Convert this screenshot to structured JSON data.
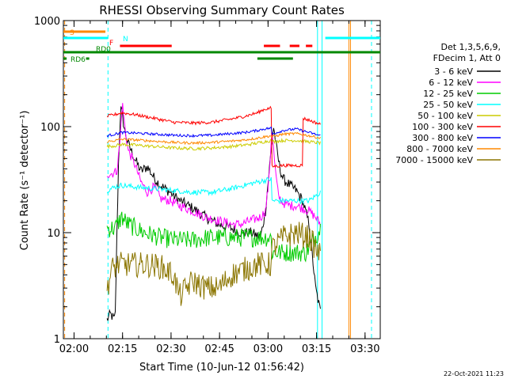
{
  "chart_data": {
    "type": "line",
    "title": "RHESSI Observing Summary Count Rates",
    "xlabel": "Start Time (10-Jun-12 01:56:42)",
    "ylabel": "Count Rate (s⁻¹ detector⁻¹)",
    "ylim": [
      1,
      1000
    ],
    "xlim_minutes_after_start": [
      0,
      98
    ],
    "y_scale": "log",
    "grid": false,
    "legend_position": "right",
    "x_ticks": [
      {
        "label": "02:00",
        "minutes": 3.3
      },
      {
        "label": "02:15",
        "minutes": 18.3
      },
      {
        "label": "02:30",
        "minutes": 33.3
      },
      {
        "label": "02:45",
        "minutes": 48.3
      },
      {
        "label": "03:00",
        "minutes": 63.3
      },
      {
        "label": "03:15",
        "minutes": 78.3
      },
      {
        "label": "03:30",
        "minutes": 93.3
      }
    ],
    "y_ticks": [
      {
        "label": "1",
        "value": 1
      },
      {
        "label": "10",
        "value": 10
      },
      {
        "label": "100",
        "value": 100
      },
      {
        "label": "1000",
        "value": 1000
      }
    ],
    "legend_header": [
      "Det 1,3,5,6,9,",
      "FDecim 1, Att 0"
    ],
    "timestamp": "22-Oct-2021 11:23",
    "data_windows_minutes": [
      [
        13.5,
        64.3
      ],
      [
        64.3,
        79.5
      ]
    ],
    "series": [
      {
        "name": "3 - 6 keV",
        "color": "#000000",
        "t": [
          13.5,
          14.5,
          16,
          17,
          17.7,
          18.2,
          19,
          20,
          22,
          24,
          26,
          28,
          30,
          33,
          36,
          40,
          44,
          48,
          52,
          55,
          58,
          61,
          62.5,
          64,
          65,
          66,
          67,
          68,
          69,
          70,
          72,
          74,
          76,
          78,
          79.5
        ],
        "v": [
          1.5,
          1.7,
          1.5,
          40,
          150,
          130,
          90,
          70,
          50,
          38,
          42,
          33,
          28,
          24,
          20,
          17,
          14,
          12,
          11,
          10,
          10,
          9,
          16,
          50,
          100,
          60,
          40,
          32,
          30,
          28,
          25,
          20,
          12,
          3,
          1.8
        ]
      },
      {
        "name": "6 - 12 keV",
        "color": "#ff00ff",
        "t": [
          13.5,
          15,
          16.5,
          17.5,
          18.2,
          19,
          20,
          22,
          24,
          26,
          28,
          30,
          33,
          36,
          40,
          44,
          48,
          52,
          55,
          58,
          61,
          62.5,
          63.5,
          64.5,
          65.5,
          66.5,
          68,
          70,
          72,
          74,
          76,
          78,
          79.5
        ],
        "v": [
          36,
          36,
          38,
          70,
          170,
          100,
          60,
          45,
          30,
          24,
          27,
          21,
          20,
          18,
          16,
          14,
          13,
          12,
          12,
          13,
          14,
          16,
          30,
          95,
          40,
          22,
          19,
          18,
          18,
          17,
          16,
          14,
          12
        ]
      },
      {
        "name": "12 - 25 keV",
        "color": "#00cc00",
        "t": [
          13.5,
          16,
          18,
          20,
          25,
          30,
          35,
          40,
          45,
          50,
          55,
          60,
          64.3,
          64.4,
          70,
          75,
          79.5
        ],
        "v": [
          11,
          11,
          14,
          12,
          10,
          9,
          8.5,
          8.5,
          9,
          9,
          9,
          9,
          9,
          6.5,
          6.5,
          6.5,
          11
        ]
      },
      {
        "name": "25 - 50 keV",
        "color": "#00ffff",
        "t": [
          13.5,
          16,
          18,
          22,
          28,
          34,
          40,
          46,
          52,
          56,
          60,
          62,
          64.3,
          64.4,
          68,
          72,
          76,
          79.5
        ],
        "v": [
          25,
          27,
          28,
          27,
          26,
          25,
          24,
          24,
          26,
          28,
          30,
          31,
          32,
          20,
          20,
          20,
          20,
          24
        ]
      },
      {
        "name": "50 - 100 keV",
        "color": "#cccc00",
        "t": [
          13.5,
          16,
          18,
          22,
          28,
          34,
          40,
          46,
          52,
          56,
          60,
          62,
          64.3,
          64.4,
          68,
          72,
          76,
          79.5
        ],
        "v": [
          65,
          66,
          68,
          67,
          65,
          63,
          62,
          63,
          65,
          67,
          70,
          72,
          74,
          72,
          74,
          74,
          72,
          70
        ]
      },
      {
        "name": "100 - 300 keV",
        "color": "#ff0000",
        "t": [
          13.5,
          16,
          18,
          22,
          28,
          34,
          40,
          46,
          52,
          56,
          60,
          62,
          64.3,
          64.4,
          68,
          72,
          74,
          74.1,
          76,
          79.5
        ],
        "v": [
          125,
          130,
          135,
          130,
          120,
          110,
          108,
          110,
          118,
          125,
          135,
          145,
          150,
          42,
          43,
          43,
          43,
          120,
          115,
          105
        ]
      },
      {
        "name": "300 - 800 keV",
        "color": "#0000ff",
        "t": [
          13.5,
          16,
          18,
          22,
          28,
          34,
          40,
          46,
          52,
          56,
          60,
          62,
          64.3,
          64.4,
          68,
          72,
          76,
          79.5
        ],
        "v": [
          82,
          85,
          88,
          87,
          85,
          83,
          82,
          83,
          86,
          88,
          92,
          95,
          97,
          85,
          92,
          95,
          88,
          82
        ]
      },
      {
        "name": "800 - 7000 keV",
        "color": "#ff8800",
        "t": [
          13.5,
          16,
          18,
          22,
          28,
          34,
          40,
          46,
          52,
          56,
          60,
          62,
          64.3,
          64.4,
          68,
          72,
          76,
          79.5
        ],
        "v": [
          72,
          74,
          76,
          75,
          73,
          71,
          70,
          71,
          73,
          75,
          78,
          80,
          82,
          80,
          85,
          86,
          82,
          78
        ]
      },
      {
        "name": "7000 - 15000 keV",
        "color": "#8b7500",
        "t": [
          13.5,
          15,
          17,
          19,
          22,
          26,
          30,
          34,
          36,
          38,
          40,
          44,
          48,
          52,
          56,
          60,
          64.3,
          64.4,
          68,
          72,
          76,
          79.5
        ],
        "v": [
          3,
          4.5,
          5,
          5,
          5,
          5,
          4.8,
          4,
          2.5,
          3,
          3.5,
          3,
          3,
          4,
          4.5,
          5,
          5,
          7,
          9,
          10,
          9,
          6
        ]
      }
    ],
    "flag_bars": [
      {
        "label": "S",
        "color": "#ff8800",
        "segments": [
          [
            0,
            13
          ]
        ]
      },
      {
        "label": "N",
        "color": "#00ffff",
        "segments": [
          [
            0,
            13.8
          ],
          [
            81,
            98
          ]
        ]
      },
      {
        "label": "F",
        "color": "#ff0000",
        "segments": [
          [
            17.5,
            33.5
          ],
          [
            62,
            67
          ],
          [
            70,
            73
          ],
          [
            75,
            77
          ]
        ]
      },
      {
        "label": "RD0",
        "color": "#008800",
        "segments": [
          [
            0,
            98
          ]
        ],
        "label_segment": [
          14,
          17
        ]
      },
      {
        "label": "RD6",
        "color": "#008800",
        "segments": [
          [
            0,
            1
          ],
          [
            7,
            8
          ],
          [
            60,
            71
          ]
        ]
      }
    ],
    "vertical_markers": [
      {
        "minutes": 0.4,
        "color": "#ff8800",
        "style": "dashed"
      },
      {
        "minutes": 13.8,
        "color": "#00ffff",
        "style": "dashed"
      },
      {
        "minutes": 78.6,
        "color": "#00ffff",
        "style": "solid"
      },
      {
        "minutes": 80.0,
        "color": "#00ffff",
        "style": "solid"
      },
      {
        "minutes": 88.3,
        "color": "#ff8800",
        "style": "solid"
      },
      {
        "minutes": 88.8,
        "color": "#ff8800",
        "style": "solid"
      },
      {
        "minutes": 95.3,
        "color": "#00ffff",
        "style": "dashed"
      }
    ]
  }
}
